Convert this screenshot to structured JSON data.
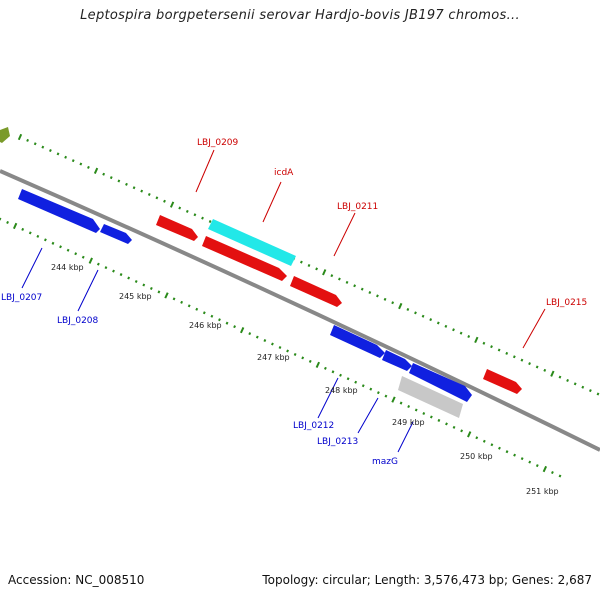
{
  "title": "Leptospira borgpetersenii serovar Hardjo-bovis JB197 chromos...",
  "footer": {
    "accession": "Accession: NC_008510",
    "topology": "Topology: circular; Length: 3,576,473 bp; Genes: 2,687"
  },
  "colors": {
    "backbone": "#888888",
    "tick_green": "#2a8a1a",
    "plus_strand_gene": "#e31010",
    "minus_strand_gene": "#1020e0",
    "icdA_gene": "#22e8e8",
    "mazG_gene": "#c8c8c8",
    "plus_label": "#cc0000",
    "minus_label": "#0000cc",
    "olive_fragment": "#7a9a2a"
  },
  "scale_labels": [
    "244 kbp",
    "245 kbp",
    "246 kbp",
    "247 kbp",
    "248 kbp",
    "249 kbp",
    "250 kbp",
    "251 kbp"
  ],
  "genes": [
    {
      "name": "LBJ_0207",
      "strand": "minus"
    },
    {
      "name": "LBJ_0208",
      "strand": "minus"
    },
    {
      "name": "LBJ_0209",
      "strand": "plus"
    },
    {
      "name": "icdA",
      "strand": "plus"
    },
    {
      "name": "LBJ_0211",
      "strand": "plus"
    },
    {
      "name": "LBJ_0212",
      "strand": "minus"
    },
    {
      "name": "LBJ_0213",
      "strand": "minus"
    },
    {
      "name": "mazG",
      "strand": "minus"
    },
    {
      "name": "LBJ_0215",
      "strand": "plus"
    }
  ]
}
